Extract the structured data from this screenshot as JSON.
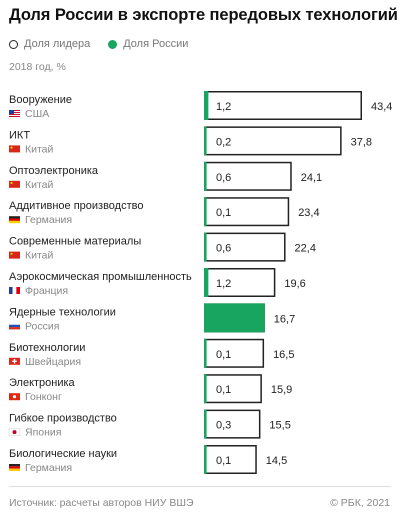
{
  "title": "Доля России в экспорте передовых технологий",
  "legend": {
    "leader": "Доля лидера",
    "russia": "Доля России"
  },
  "subtitle": "2018 год, %",
  "colors": {
    "russia": "#17a55f",
    "leader_border": "#222222"
  },
  "chart_data": {
    "type": "bar",
    "orientation": "horizontal",
    "series": [
      {
        "name": "Доля лидера",
        "values": [
          43.4,
          37.8,
          24.1,
          23.4,
          22.4,
          19.6,
          16.7,
          16.5,
          15.9,
          15.5,
          14.5
        ]
      },
      {
        "name": "Доля России",
        "values": [
          1.2,
          0.2,
          0.6,
          0.1,
          0.6,
          1.2,
          16.7,
          0.1,
          0.1,
          0.3,
          0.1
        ]
      }
    ],
    "rows": [
      {
        "category": "Вооружение",
        "country": "США",
        "flag": "us",
        "leader": 43.4,
        "russia": 1.2,
        "leader_label": "43,4",
        "russia_label": "1,2"
      },
      {
        "category": "ИКТ",
        "country": "Китай",
        "flag": "cn",
        "leader": 37.8,
        "russia": 0.2,
        "leader_label": "37,8",
        "russia_label": "0,2"
      },
      {
        "category": "Оптоэлектроника",
        "country": "Китай",
        "flag": "cn",
        "leader": 24.1,
        "russia": 0.6,
        "leader_label": "24,1",
        "russia_label": "0,6"
      },
      {
        "category": "Аддитивное производство",
        "country": "Германия",
        "flag": "de",
        "leader": 23.4,
        "russia": 0.1,
        "leader_label": "23,4",
        "russia_label": "0,1"
      },
      {
        "category": "Современные материалы",
        "country": "Китай",
        "flag": "cn",
        "leader": 22.4,
        "russia": 0.6,
        "leader_label": "22,4",
        "russia_label": "0,6"
      },
      {
        "category": "Аэрокосмическая промышленность",
        "country": "Франция",
        "flag": "fr",
        "leader": 19.6,
        "russia": 1.2,
        "leader_label": "19,6",
        "russia_label": "1,2"
      },
      {
        "category": "Ядерные технологии",
        "country": "Россия",
        "flag": "ru",
        "leader": 16.7,
        "russia": 16.7,
        "leader_label": "16,7",
        "russia_label": ""
      },
      {
        "category": "Биотехнологии",
        "country": "Швейцария",
        "flag": "ch",
        "leader": 16.5,
        "russia": 0.1,
        "leader_label": "16,5",
        "russia_label": "0,1"
      },
      {
        "category": "Электроника",
        "country": "Гонконг",
        "flag": "hk",
        "leader": 15.9,
        "russia": 0.1,
        "leader_label": "15,9",
        "russia_label": "0,1"
      },
      {
        "category": "Гибкое производство",
        "country": "Япония",
        "flag": "jp",
        "leader": 15.5,
        "russia": 0.3,
        "leader_label": "15,5",
        "russia_label": "0,3"
      },
      {
        "category": "Биологические науки",
        "country": "Германия",
        "flag": "de",
        "leader": 14.5,
        "russia": 0.1,
        "leader_label": "14,5",
        "russia_label": "0,1"
      }
    ],
    "xlim": [
      0,
      43.4
    ],
    "grid": false,
    "legend_position": "top-left"
  },
  "footer": {
    "source": "Источник: расчеты авторов НИУ ВШЭ",
    "copyright": "© РБК, 2021"
  }
}
